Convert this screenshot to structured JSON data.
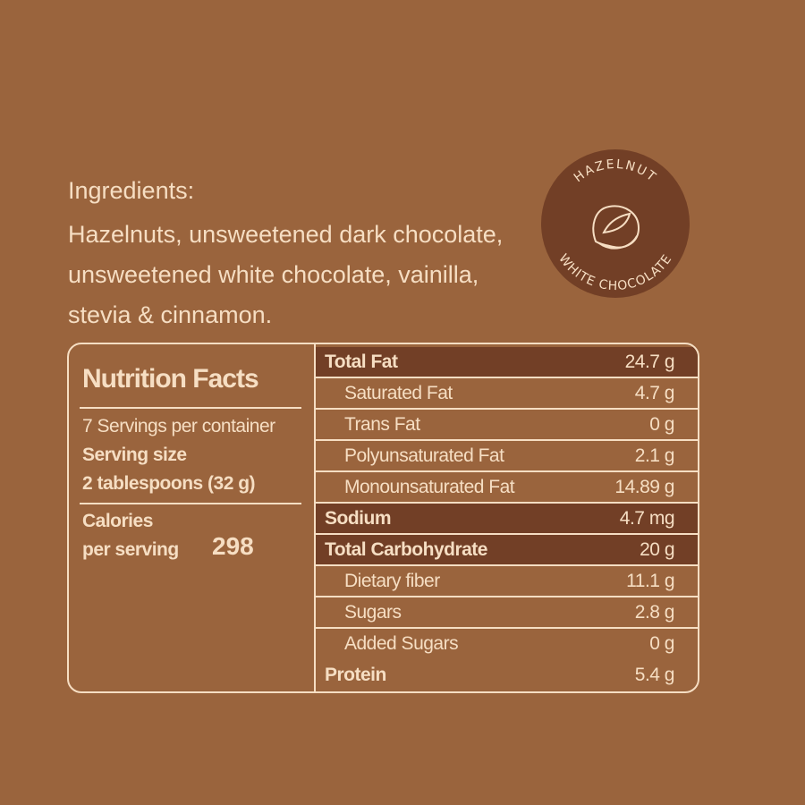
{
  "ingredients": {
    "title": "Ingredients:",
    "text": "Hazelnuts, unsweetened dark chocolate, unsweetened white chocolate, vainilla, stevia & cinnamon."
  },
  "badge": {
    "top_text": "HAZELNUT",
    "bottom_text": "WHITE CHOCOLATE",
    "icon": "hazelnut-icon"
  },
  "colors": {
    "background": "#9a643d",
    "dark": "#723f26",
    "cream": "#f6dec3"
  },
  "nutrition": {
    "title": "Nutrition Facts",
    "servings": "7 Servings per container",
    "serving_size_label": "Serving size",
    "serving_size": "2 tablespoons (32 g)",
    "calories_label_1": "Calories",
    "calories_label_2": "per serving",
    "calories": "298",
    "rows": [
      {
        "label": "Total Fat",
        "value": "24.7 g"
      },
      {
        "label": "Saturated Fat",
        "value": "4.7 g"
      },
      {
        "label": "Trans Fat",
        "value": "0 g"
      },
      {
        "label": "Polyunsaturated Fat",
        "value": "2.1 g"
      },
      {
        "label": "Monounsaturated Fat",
        "value": "14.89 g"
      },
      {
        "label": "Sodium",
        "value": "4.7 mg"
      },
      {
        "label": "Total Carbohydrate",
        "value": "20 g"
      },
      {
        "label": "Dietary fiber",
        "value": "11.1 g"
      },
      {
        "label": "Sugars",
        "value": "2.8 g"
      },
      {
        "label": "Added Sugars",
        "value": "0 g"
      },
      {
        "label": "Protein",
        "value": "5.4 g"
      }
    ]
  }
}
